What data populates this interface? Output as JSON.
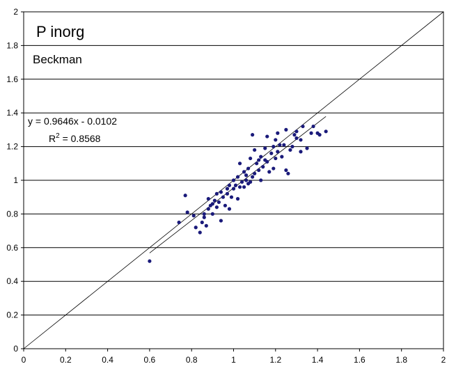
{
  "chart_data": {
    "type": "scatter",
    "title": "P inorg",
    "subtitle": "Beckman",
    "xlabel": "",
    "ylabel": "",
    "xlim": [
      0,
      2
    ],
    "ylim": [
      0,
      2
    ],
    "x_ticks": [
      "0",
      "0.2",
      "0.4",
      "0.6",
      "0.8",
      "1",
      "1.2",
      "1.4",
      "1.6",
      "1.8",
      "2"
    ],
    "y_ticks": [
      "0",
      "0.2",
      "0.4",
      "0.6",
      "0.8",
      "1",
      "1.2",
      "1.4",
      "1.6",
      "1.8",
      "2"
    ],
    "grid": "horizontal",
    "marker_color": "#1a1a7a",
    "identity_line": {
      "slope": 1,
      "intercept": 0
    },
    "trendline": {
      "slope": 0.9646,
      "intercept": -0.0102,
      "x_range": [
        0.6,
        1.44
      ],
      "equation": "y = 0.9646x - 0.0102",
      "r2_label": "R",
      "r2_sup": "2",
      "r2_value": " = 0.8568"
    },
    "points": [
      [
        0.6,
        0.52
      ],
      [
        0.74,
        0.75
      ],
      [
        0.77,
        0.91
      ],
      [
        0.78,
        0.81
      ],
      [
        0.81,
        0.79
      ],
      [
        0.82,
        0.72
      ],
      [
        0.84,
        0.69
      ],
      [
        0.85,
        0.75
      ],
      [
        0.86,
        0.8
      ],
      [
        0.86,
        0.78
      ],
      [
        0.87,
        0.73
      ],
      [
        0.88,
        0.83
      ],
      [
        0.88,
        0.89
      ],
      [
        0.89,
        0.85
      ],
      [
        0.9,
        0.86
      ],
      [
        0.9,
        0.8
      ],
      [
        0.91,
        0.88
      ],
      [
        0.92,
        0.84
      ],
      [
        0.92,
        0.92
      ],
      [
        0.93,
        0.87
      ],
      [
        0.94,
        0.93
      ],
      [
        0.94,
        0.76
      ],
      [
        0.95,
        0.9
      ],
      [
        0.96,
        0.85
      ],
      [
        0.97,
        0.92
      ],
      [
        0.97,
        0.95
      ],
      [
        0.98,
        0.97
      ],
      [
        0.98,
        0.83
      ],
      [
        0.99,
        0.9
      ],
      [
        1.0,
        0.95
      ],
      [
        1.0,
        1.0
      ],
      [
        1.01,
        0.97
      ],
      [
        1.02,
        0.89
      ],
      [
        1.02,
        1.02
      ],
      [
        1.03,
        0.96
      ],
      [
        1.03,
        1.1
      ],
      [
        1.04,
        0.99
      ],
      [
        1.05,
        1.05
      ],
      [
        1.05,
        0.96
      ],
      [
        1.06,
        1.03
      ],
      [
        1.06,
        1.0
      ],
      [
        1.07,
        0.98
      ],
      [
        1.07,
        1.07
      ],
      [
        1.08,
        0.99
      ],
      [
        1.08,
        1.13
      ],
      [
        1.09,
        1.02
      ],
      [
        1.09,
        1.27
      ],
      [
        1.1,
        1.04
      ],
      [
        1.1,
        1.18
      ],
      [
        1.11,
        1.1
      ],
      [
        1.12,
        1.12
      ],
      [
        1.12,
        1.06
      ],
      [
        1.13,
        1.0
      ],
      [
        1.13,
        1.14
      ],
      [
        1.14,
        1.08
      ],
      [
        1.15,
        1.12
      ],
      [
        1.15,
        1.19
      ],
      [
        1.16,
        1.11
      ],
      [
        1.16,
        1.26
      ],
      [
        1.17,
        1.05
      ],
      [
        1.18,
        1.16
      ],
      [
        1.19,
        1.2
      ],
      [
        1.19,
        1.07
      ],
      [
        1.2,
        1.24
      ],
      [
        1.2,
        1.13
      ],
      [
        1.21,
        1.17
      ],
      [
        1.21,
        1.28
      ],
      [
        1.22,
        1.21
      ],
      [
        1.23,
        1.14
      ],
      [
        1.24,
        1.21
      ],
      [
        1.25,
        1.06
      ],
      [
        1.25,
        1.3
      ],
      [
        1.26,
        1.04
      ],
      [
        1.27,
        1.18
      ],
      [
        1.28,
        1.2
      ],
      [
        1.29,
        1.27
      ],
      [
        1.3,
        1.25
      ],
      [
        1.3,
        1.29
      ],
      [
        1.32,
        1.17
      ],
      [
        1.32,
        1.24
      ],
      [
        1.33,
        1.32
      ],
      [
        1.35,
        1.19
      ],
      [
        1.37,
        1.28
      ],
      [
        1.38,
        1.32
      ],
      [
        1.4,
        1.28
      ],
      [
        1.41,
        1.27
      ],
      [
        1.44,
        1.29
      ]
    ]
  }
}
